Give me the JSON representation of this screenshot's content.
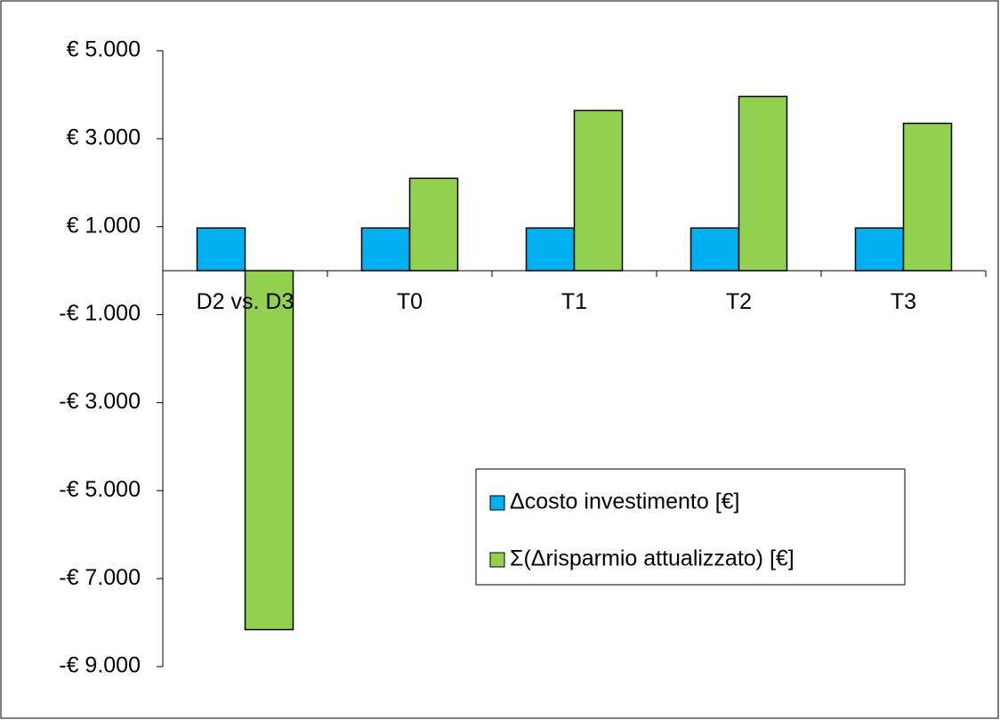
{
  "chart_data": {
    "type": "bar",
    "categories": [
      "D2 vs. D3",
      "T0",
      "T1",
      "T2",
      "T3"
    ],
    "series": [
      {
        "name": "Δcosto investimento [€]",
        "color": "#00b0f0",
        "values": [
          970,
          970,
          970,
          970,
          970
        ]
      },
      {
        "name": "Σ(Δrisparmio attualizzato) [€]",
        "color": "#92d050",
        "values": [
          -8160,
          2100,
          3640,
          3960,
          3350
        ]
      }
    ],
    "ylim": [
      -9000,
      5000
    ],
    "yticks": [
      {
        "value": 5000,
        "label": "€ 5.000"
      },
      {
        "value": 3000,
        "label": "€ 3.000"
      },
      {
        "value": 1000,
        "label": "€ 1.000"
      },
      {
        "value": -1000,
        "label": "-€ 1.000"
      },
      {
        "value": -3000,
        "label": "-€ 3.000"
      },
      {
        "value": -5000,
        "label": "-€ 5.000"
      },
      {
        "value": -7000,
        "label": "-€ 7.000"
      },
      {
        "value": -9000,
        "label": "-€ 9.000"
      }
    ],
    "grid": false
  }
}
